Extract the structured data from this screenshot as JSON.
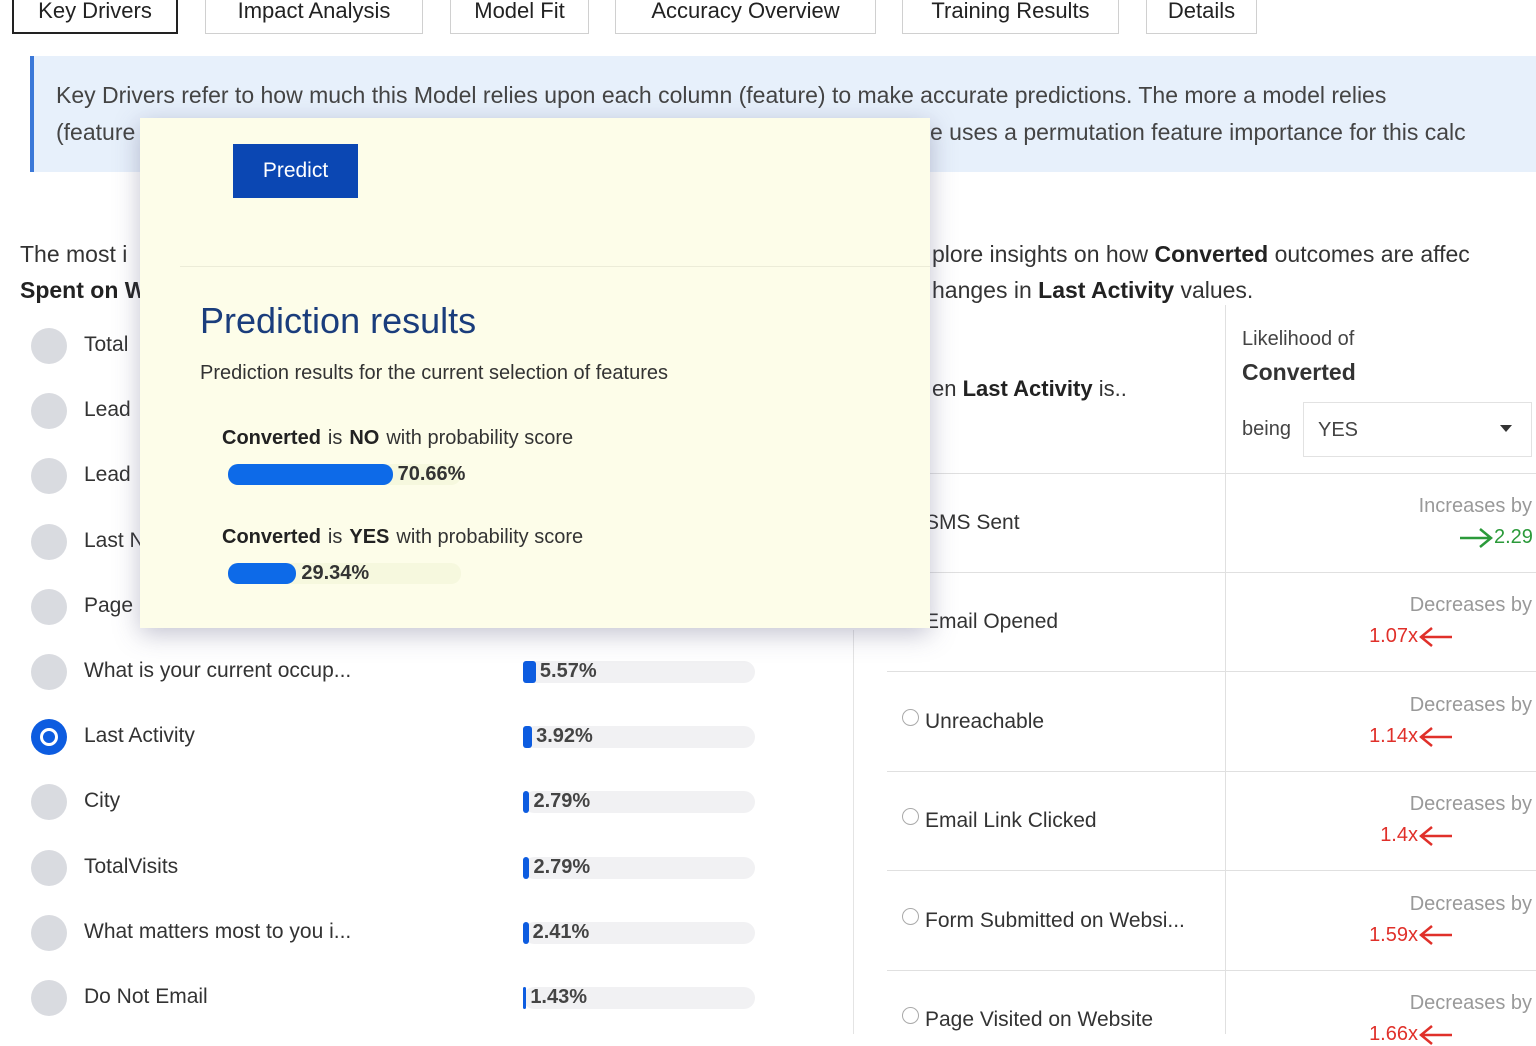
{
  "tabs": [
    "Key Drivers",
    "Impact Analysis",
    "Model Fit",
    "Accuracy Overview",
    "Training Results",
    "Details"
  ],
  "banner": {
    "line1": "Key Drivers refer to how much this Model relies upon each column (feature) to make accurate predictions. The more a model relies",
    "line2_start": "(feature",
    "line2_end": "e uses a permutation feature importance for this calc"
  },
  "intro_left": {
    "line1": "The most i",
    "line2": "Spent on W"
  },
  "intro_right": {
    "line1": [
      "plore insights on how ",
      "Converted",
      " outcomes are affec"
    ],
    "line2": [
      "hanges in ",
      "Last Activity",
      " values."
    ]
  },
  "features": [
    {
      "label": "Total"
    },
    {
      "label": "Lead"
    },
    {
      "label": "Lead"
    },
    {
      "label": "Last N"
    },
    {
      "label": "Page"
    },
    {
      "label": "What is your current occup...",
      "value": 5.57,
      "value_label": "5.57%"
    },
    {
      "label": "Last Activity",
      "value": 3.92,
      "value_label": "3.92%",
      "selected": true
    },
    {
      "label": "City",
      "value": 2.79,
      "value_label": "2.79%"
    },
    {
      "label": "TotalVisits",
      "value": 2.79,
      "value_label": "2.79%"
    },
    {
      "label": "What matters most to you i...",
      "value": 2.41,
      "value_label": "2.41%"
    },
    {
      "label": "Do Not Email",
      "value": 1.43,
      "value_label": "1.43%"
    }
  ],
  "popup": {
    "button": "Predict",
    "title": "Prediction results",
    "subtitle": "Prediction results for the current selection of features",
    "results": [
      {
        "outcome": "Converted",
        "verb": "is",
        "class": "NO",
        "suffix": "with probability score",
        "value": 70.66,
        "value_label": "70.66%"
      },
      {
        "outcome": "Converted",
        "verb": "is",
        "class": "YES",
        "suffix": "with probability score",
        "value": 29.34,
        "value_label": "29.34%"
      }
    ]
  },
  "table": {
    "header": {
      "feature": [
        "en ",
        "Last Activity",
        " is.."
      ],
      "likelihood": "Likelihood of",
      "target": "Converted",
      "being": "being",
      "selected": "YES"
    },
    "rows": [
      {
        "label": "SMS Sent",
        "direction": "Increases by",
        "factor": "2.29",
        "color": "#2b9a3a",
        "arrow": "right"
      },
      {
        "label": "Email Opened",
        "direction": "Decreases by",
        "factor": "1.07x",
        "color": "#e0302a",
        "arrow": "left"
      },
      {
        "label": "Unreachable",
        "direction": "Decreases by",
        "factor": "1.14x",
        "color": "#e0302a",
        "arrow": "left"
      },
      {
        "label": "Email Link Clicked",
        "direction": "Decreases by",
        "factor": "1.4x",
        "color": "#e0302a",
        "arrow": "left"
      },
      {
        "label": "Form Submitted on Websi...",
        "direction": "Decreases by",
        "factor": "1.59x",
        "color": "#e0302a",
        "arrow": "left"
      },
      {
        "label": "Page Visited on Website",
        "direction": "Decreases by",
        "factor": "1.66x",
        "color": "#e0302a",
        "arrow": "left"
      }
    ]
  }
}
